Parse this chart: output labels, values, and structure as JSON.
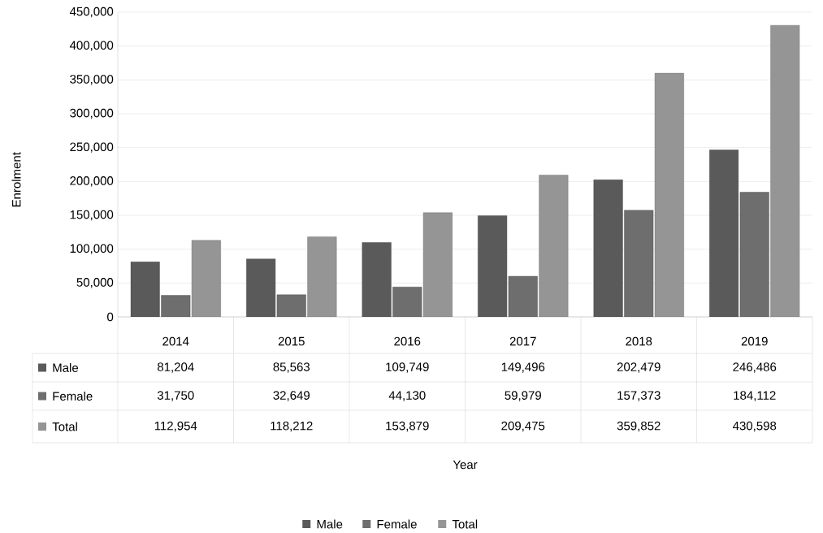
{
  "chart_data": {
    "type": "bar",
    "annotations": [
      "Year"
    ],
    "ylabel": "Enrolment",
    "categories": [
      "2014",
      "2015",
      "2016",
      "2017",
      "2018",
      "2019"
    ],
    "series": [
      {
        "name": "Male",
        "color": "#5a5a5a",
        "values": [
          81204,
          85563,
          109749,
          149496,
          202479,
          246486
        ],
        "value_labels": [
          "81,204",
          "85,563",
          "109,749",
          "149,496",
          "202,479",
          "246,486"
        ]
      },
      {
        "name": "Female",
        "color": "#6e6e6e",
        "values": [
          31750,
          32649,
          44130,
          59979,
          157373,
          184112
        ],
        "value_labels": [
          "31,750",
          "32,649",
          "44,130",
          "59,979",
          "157,373",
          "184,112"
        ]
      },
      {
        "name": "Total",
        "color": "#959595",
        "values": [
          112954,
          118212,
          153879,
          209475,
          359852,
          430598
        ],
        "value_labels": [
          "112,954",
          "118,212",
          "153,879",
          "209,475",
          "359,852",
          "430,598"
        ]
      }
    ],
    "ylim": [
      0,
      450000
    ],
    "yticks": [
      0,
      {
        "value": 50000,
        "label": "50,000"
      },
      {
        "value": 100000,
        "label": "100,000"
      },
      {
        "value": 150000,
        "label": "150,000"
      },
      {
        "value": 200000,
        "label": "200,000"
      },
      {
        "value": 250000,
        "label": "250,000"
      },
      {
        "value": 300000,
        "label": "300,000"
      },
      {
        "value": 350000,
        "label": "350,000"
      },
      {
        "value": 400000,
        "label": "400,000"
      },
      {
        "value": 450000,
        "label": "450,000"
      }
    ],
    "grid": "y",
    "legend": "bottom"
  }
}
